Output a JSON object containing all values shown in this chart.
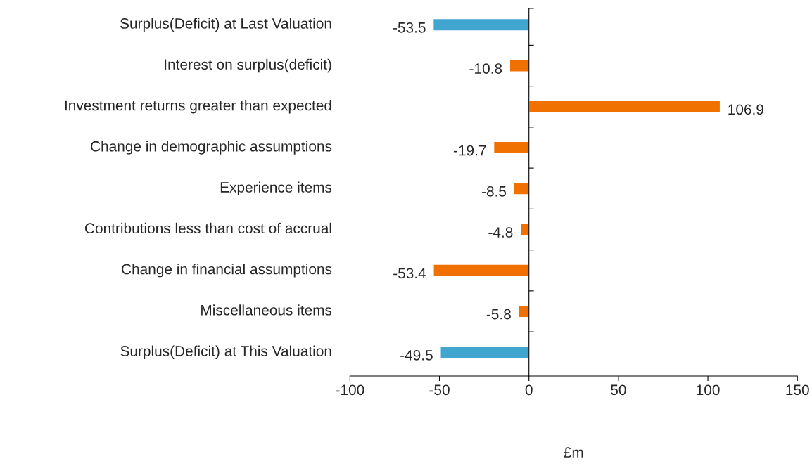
{
  "chart_data": {
    "type": "bar",
    "orientation": "horizontal",
    "xlabel": "£m",
    "categories": [
      "Surplus(Deficit) at Last Valuation",
      "Interest on surplus(deficit)",
      "Investment returns greater than expected",
      "Change in demographic assumptions",
      "Experience items",
      "Contributions less than cost of accrual",
      "Change in financial assumptions",
      "Miscellaneous items",
      "Surplus(Deficit) at This Valuation"
    ],
    "values": [
      -53.5,
      -10.8,
      106.9,
      -19.7,
      -8.5,
      -4.8,
      -53.4,
      -5.8,
      -49.5
    ],
    "colors": [
      "#41a6cf",
      "#f07000",
      "#f07000",
      "#f07000",
      "#f07000",
      "#f07000",
      "#f07000",
      "#f07000",
      "#41a6cf"
    ],
    "xlim": [
      -100,
      150
    ],
    "xticks": [
      -100,
      -50,
      0,
      50,
      100,
      150
    ],
    "data_labels": true
  }
}
